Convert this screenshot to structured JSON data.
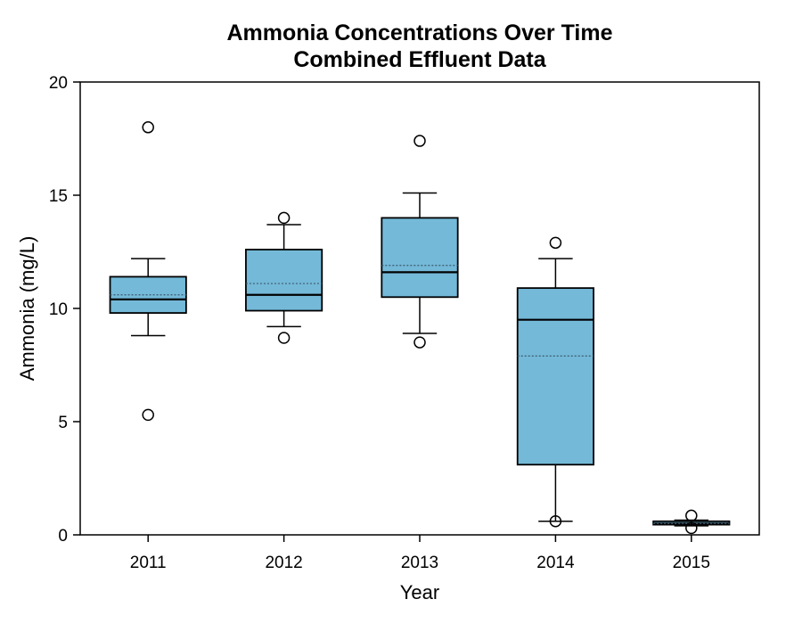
{
  "chart_data": {
    "type": "box",
    "title": "Ammonia Concentrations Over Time",
    "subtitle": "Combined Effluent Data",
    "xlabel": "Year",
    "ylabel": "Ammonia (mg/L)",
    "ylim": [
      0,
      20
    ],
    "yticks": [
      0,
      5,
      10,
      15,
      20
    ],
    "categories": [
      "2011",
      "2012",
      "2013",
      "2014",
      "2015"
    ],
    "box_color": "#74b9d8",
    "edge_color": "#000000",
    "boxes": [
      {
        "category": "2011",
        "whisker_low": 8.8,
        "q1": 9.8,
        "median": 10.4,
        "mean": 10.6,
        "q3": 11.4,
        "whisker_high": 12.2,
        "outliers": [
          18.0,
          5.3
        ]
      },
      {
        "category": "2012",
        "whisker_low": 9.2,
        "q1": 9.9,
        "median": 10.6,
        "mean": 11.1,
        "q3": 12.6,
        "whisker_high": 13.7,
        "outliers": [
          14.0,
          8.7
        ]
      },
      {
        "category": "2013",
        "whisker_low": 8.9,
        "q1": 10.5,
        "median": 11.6,
        "mean": 11.9,
        "q3": 14.0,
        "whisker_high": 15.1,
        "outliers": [
          17.4,
          8.5
        ]
      },
      {
        "category": "2014",
        "whisker_low": 0.6,
        "q1": 3.1,
        "median": 9.5,
        "mean": 7.9,
        "q3": 10.9,
        "whisker_high": 12.2,
        "outliers": [
          12.9,
          0.6
        ]
      },
      {
        "category": "2015",
        "whisker_low": 0.4,
        "q1": 0.45,
        "median": 0.5,
        "mean": 0.5,
        "q3": 0.6,
        "whisker_high": 0.65,
        "outliers": [
          0.85,
          0.3
        ]
      }
    ],
    "grid": false,
    "legend": "none"
  }
}
